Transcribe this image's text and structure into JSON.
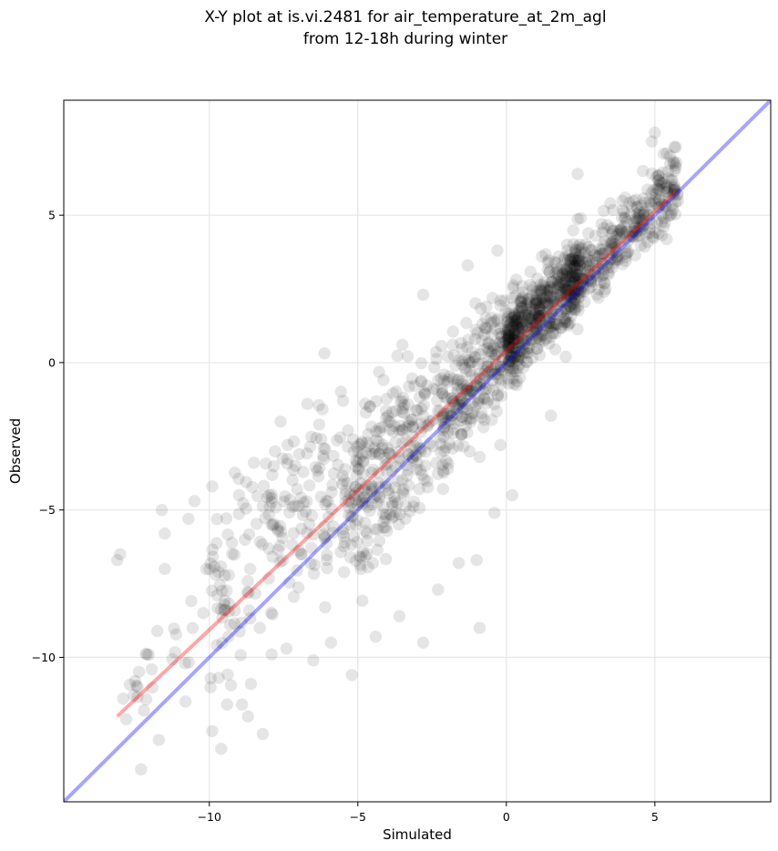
{
  "chart_data": {
    "type": "scatter",
    "title": "X-Y plot at is.vi.2481 for air_temperature_at_2m_agl",
    "subtitle": "from 12-18h during winter",
    "xlabel": "Simulated",
    "ylabel": "Observed",
    "xlim": [
      -14.9,
      8.9
    ],
    "ylim": [
      -14.9,
      8.9
    ],
    "xticks": [
      -10,
      -5,
      0,
      5
    ],
    "yticks": [
      -10,
      -5,
      0,
      5
    ],
    "xtick_labels": [
      "−10",
      "−5",
      "0",
      "5"
    ],
    "ytick_labels": [
      "−10",
      "−5",
      "0",
      "5"
    ],
    "grid": true,
    "colors": {
      "points": "#000000",
      "fit_line": "#ff0000",
      "identity_line": "#0000ff"
    },
    "identity_line": {
      "x": [
        -14.9,
        8.9
      ],
      "y": [
        -14.9,
        8.9
      ]
    },
    "fit_line": {
      "x": [
        -13.1,
        5.7
      ],
      "y": [
        -12.0,
        5.8
      ]
    },
    "point_count_approx": 1500,
    "point_clusters": [
      {
        "x": [
          -12.8,
          -10.5
        ],
        "y_offset": [
          0.5,
          2.5
        ],
        "n": 20
      },
      {
        "x": [
          -10.0,
          -5.5
        ],
        "y_offset": [
          -1.5,
          5.5
        ],
        "n": 180
      },
      {
        "x": [
          -5.5,
          -2.0
        ],
        "y_offset": [
          -2.5,
          3.5
        ],
        "n": 300
      },
      {
        "x": [
          -2.0,
          0.5
        ],
        "y_offset": [
          -1.5,
          2.5
        ],
        "n": 250
      },
      {
        "x": [
          0.0,
          2.5
        ],
        "y_offset": [
          -0.8,
          2.0
        ],
        "n": 450
      },
      {
        "x": [
          2.0,
          5.8
        ],
        "y_offset": [
          -1.0,
          1.8
        ],
        "n": 300
      }
    ],
    "points": [
      [
        -13.1,
        -6.7
      ],
      [
        -13.0,
        -6.5
      ],
      [
        -12.9,
        -11.4
      ],
      [
        -12.8,
        -12.1
      ],
      [
        -12.5,
        -10.8
      ],
      [
        -12.3,
        -13.8
      ],
      [
        -12.2,
        -11.8
      ],
      [
        -12.1,
        -9.9
      ],
      [
        -11.7,
        -12.8
      ],
      [
        -11.6,
        -5.0
      ],
      [
        -11.5,
        -5.8
      ],
      [
        -11.5,
        -7.0
      ],
      [
        -10.8,
        -11.5
      ],
      [
        -10.7,
        -5.3
      ],
      [
        -10.5,
        -4.7
      ],
      [
        -10.2,
        -8.5
      ],
      [
        -10.1,
        -7.0
      ],
      [
        -9.9,
        -4.2
      ],
      [
        -9.9,
        -12.5
      ],
      [
        -9.6,
        -13.1
      ],
      [
        -9.4,
        -11.6
      ],
      [
        -9.3,
        -8.9
      ],
      [
        -9.0,
        -4.5
      ],
      [
        -8.9,
        -11.6
      ],
      [
        -8.7,
        -12.0
      ],
      [
        -8.6,
        -10.9
      ],
      [
        -8.5,
        -3.4
      ],
      [
        -8.3,
        -9.0
      ],
      [
        -8.2,
        -12.6
      ],
      [
        -7.9,
        -9.9
      ],
      [
        -7.6,
        -2.0
      ],
      [
        -7.4,
        -9.7
      ],
      [
        -7.1,
        -3.5
      ],
      [
        -6.9,
        -6.5
      ],
      [
        -6.7,
        -1.4
      ],
      [
        -6.5,
        -10.1
      ],
      [
        -6.3,
        -2.1
      ],
      [
        -6.1,
        -8.3
      ],
      [
        -5.9,
        -9.5
      ],
      [
        -5.5,
        -1.3
      ],
      [
        -5.2,
        -10.6
      ],
      [
        -4.9,
        -7.0
      ],
      [
        -4.6,
        -1.5
      ],
      [
        -4.4,
        -9.3
      ],
      [
        -4.0,
        -2.9
      ],
      [
        -3.6,
        -8.6
      ],
      [
        -3.5,
        0.6
      ],
      [
        -2.8,
        -9.5
      ],
      [
        -2.8,
        2.3
      ],
      [
        -2.3,
        -7.7
      ],
      [
        -2.0,
        -1.2
      ],
      [
        -1.6,
        -6.8
      ],
      [
        -1.3,
        3.3
      ],
      [
        -1.2,
        0.0
      ],
      [
        -1.0,
        -6.7
      ],
      [
        -0.9,
        -3.2
      ],
      [
        -0.9,
        -9.0
      ],
      [
        -0.4,
        -5.1
      ],
      [
        -0.3,
        3.8
      ],
      [
        -0.2,
        -2.8
      ],
      [
        0.2,
        -4.5
      ],
      [
        0.4,
        0.7
      ],
      [
        1.2,
        3.6
      ],
      [
        1.5,
        -1.8
      ],
      [
        2.0,
        0.2
      ],
      [
        2.4,
        6.4
      ],
      [
        2.5,
        4.9
      ],
      [
        3.0,
        4.3
      ],
      [
        3.3,
        2.4
      ],
      [
        3.5,
        5.4
      ],
      [
        4.0,
        5.6
      ],
      [
        4.4,
        4.8
      ],
      [
        4.6,
        6.5
      ],
      [
        4.9,
        7.5
      ],
      [
        5.0,
        7.8
      ],
      [
        5.3,
        6.1
      ],
      [
        5.4,
        7.1
      ],
      [
        5.6,
        5.2
      ],
      [
        5.7,
        6.6
      ]
    ]
  }
}
